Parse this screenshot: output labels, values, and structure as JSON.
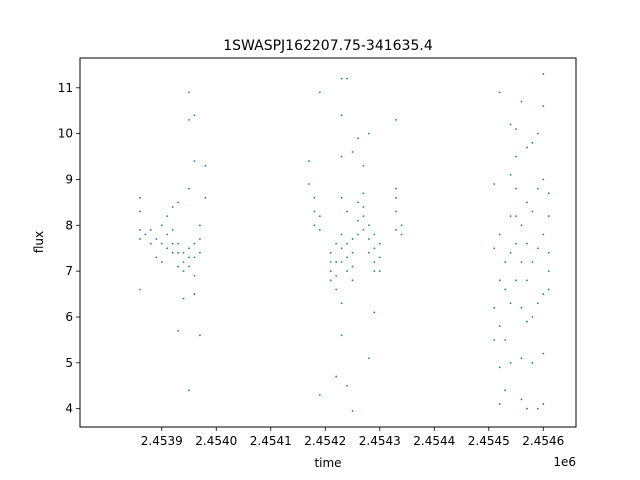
{
  "chart_data": {
    "type": "scatter",
    "title": "1SWASPJ162207.75-341635.4",
    "xlabel": "time",
    "ylabel": "flux",
    "x_offset_label": "1e6",
    "x_scale": 1000000,
    "xlim": [
      2.45375,
      2.45466
    ],
    "ylim": [
      3.6,
      11.65
    ],
    "x_ticks": [
      2.4539,
      2.454,
      2.4541,
      2.4542,
      2.4543,
      2.4544,
      2.4545,
      2.4546
    ],
    "x_tick_labels": [
      "2.4539",
      "2.4540",
      "2.4541",
      "2.4542",
      "2.4543",
      "2.4544",
      "2.4545",
      "2.4546"
    ],
    "y_ticks": [
      4,
      5,
      6,
      7,
      8,
      9,
      10,
      11
    ],
    "y_tick_labels": [
      "4",
      "5",
      "6",
      "7",
      "8",
      "9",
      "10",
      "11"
    ],
    "grid": false,
    "legend": "none",
    "marker_color": "#1f77b4",
    "series": [
      {
        "values": [
          [
            2.45386,
            7.9
          ],
          [
            2.45386,
            8.3
          ],
          [
            2.45386,
            7.7
          ],
          [
            2.45386,
            8.6
          ],
          [
            2.45386,
            6.6
          ],
          [
            2.45387,
            7.8
          ],
          [
            2.45388,
            7.9
          ],
          [
            2.45388,
            7.6
          ],
          [
            2.45389,
            7.7
          ],
          [
            2.45389,
            7.3
          ],
          [
            2.4539,
            7.6
          ],
          [
            2.4539,
            8.0
          ],
          [
            2.4539,
            7.2
          ],
          [
            2.45391,
            7.8
          ],
          [
            2.45391,
            7.5
          ],
          [
            2.45391,
            8.2
          ],
          [
            2.45392,
            7.6
          ],
          [
            2.45392,
            7.9
          ],
          [
            2.45392,
            7.4
          ],
          [
            2.45392,
            8.4
          ],
          [
            2.45393,
            7.4
          ],
          [
            2.45393,
            7.1
          ],
          [
            2.45393,
            7.6
          ],
          [
            2.45393,
            5.7
          ],
          [
            2.45393,
            8.5
          ],
          [
            2.45394,
            7.2
          ],
          [
            2.45394,
            7.4
          ],
          [
            2.45394,
            7.0
          ],
          [
            2.45394,
            6.4
          ],
          [
            2.45395,
            7.1
          ],
          [
            2.45395,
            7.3
          ],
          [
            2.45395,
            7.5
          ],
          [
            2.45395,
            8.8
          ],
          [
            2.45395,
            10.3
          ],
          [
            2.45395,
            10.9
          ],
          [
            2.45395,
            4.4
          ],
          [
            2.45396,
            7.3
          ],
          [
            2.45396,
            6.9
          ],
          [
            2.45396,
            7.6
          ],
          [
            2.45396,
            6.5
          ],
          [
            2.45396,
            9.4
          ],
          [
            2.45396,
            10.4
          ],
          [
            2.45397,
            7.4
          ],
          [
            2.45397,
            7.7
          ],
          [
            2.45397,
            8.0
          ],
          [
            2.45397,
            5.6
          ],
          [
            2.45398,
            9.3
          ],
          [
            2.45398,
            8.6
          ],
          [
            2.45417,
            8.9
          ],
          [
            2.45417,
            9.4
          ],
          [
            2.45418,
            8.3
          ],
          [
            2.45418,
            8.6
          ],
          [
            2.45418,
            8.0
          ],
          [
            2.45419,
            7.9
          ],
          [
            2.45419,
            8.2
          ],
          [
            2.45419,
            10.9
          ],
          [
            2.45419,
            4.3
          ],
          [
            2.45421,
            7.4
          ],
          [
            2.45421,
            7.0
          ],
          [
            2.45421,
            6.8
          ],
          [
            2.45421,
            7.2
          ],
          [
            2.45422,
            7.2
          ],
          [
            2.45422,
            6.9
          ],
          [
            2.45422,
            7.6
          ],
          [
            2.45422,
            6.6
          ],
          [
            2.45422,
            4.7
          ],
          [
            2.45423,
            7.5
          ],
          [
            2.45423,
            7.8
          ],
          [
            2.45423,
            7.2
          ],
          [
            2.45423,
            8.6
          ],
          [
            2.45423,
            9.5
          ],
          [
            2.45423,
            10.4
          ],
          [
            2.45423,
            11.2
          ],
          [
            2.45423,
            6.3
          ],
          [
            2.45423,
            5.6
          ],
          [
            2.45424,
            7.3
          ],
          [
            2.45424,
            7.6
          ],
          [
            2.45424,
            7.0
          ],
          [
            2.45424,
            8.3
          ],
          [
            2.45424,
            11.2
          ],
          [
            2.45424,
            4.5
          ],
          [
            2.45425,
            7.4
          ],
          [
            2.45425,
            7.1
          ],
          [
            2.45425,
            7.7
          ],
          [
            2.45425,
            6.8
          ],
          [
            2.45425,
            9.6
          ],
          [
            2.45425,
            3.95
          ],
          [
            2.45426,
            8.1
          ],
          [
            2.45426,
            8.5
          ],
          [
            2.45426,
            7.8
          ],
          [
            2.45426,
            9.9
          ],
          [
            2.45427,
            8.2
          ],
          [
            2.45427,
            8.4
          ],
          [
            2.45427,
            8.7
          ],
          [
            2.45427,
            7.9
          ],
          [
            2.45427,
            9.3
          ],
          [
            2.45428,
            7.7
          ],
          [
            2.45428,
            8.0
          ],
          [
            2.45428,
            7.4
          ],
          [
            2.45428,
            10.0
          ],
          [
            2.45428,
            5.1
          ],
          [
            2.45429,
            7.2
          ],
          [
            2.45429,
            7.5
          ],
          [
            2.45429,
            7.0
          ],
          [
            2.45429,
            7.8
          ],
          [
            2.45429,
            6.1
          ],
          [
            2.4543,
            7.3
          ],
          [
            2.4543,
            7.0
          ],
          [
            2.4543,
            7.6
          ],
          [
            2.45433,
            8.3
          ],
          [
            2.45433,
            8.6
          ],
          [
            2.45433,
            8.8
          ],
          [
            2.45433,
            10.3
          ],
          [
            2.45433,
            7.9
          ],
          [
            2.45434,
            8.0
          ],
          [
            2.45434,
            7.8
          ],
          [
            2.45451,
            8.9
          ],
          [
            2.45451,
            7.5
          ],
          [
            2.45451,
            6.2
          ],
          [
            2.45451,
            5.5
          ],
          [
            2.45452,
            7.8
          ],
          [
            2.45452,
            6.8
          ],
          [
            2.45452,
            5.8
          ],
          [
            2.45452,
            4.9
          ],
          [
            2.45452,
            4.1
          ],
          [
            2.45452,
            10.9
          ],
          [
            2.45453,
            5.5
          ],
          [
            2.45453,
            6.6
          ],
          [
            2.45453,
            4.4
          ],
          [
            2.45453,
            7.2
          ],
          [
            2.45454,
            7.4
          ],
          [
            2.45454,
            8.2
          ],
          [
            2.45454,
            9.1
          ],
          [
            2.45454,
            5.0
          ],
          [
            2.45454,
            6.3
          ],
          [
            2.45454,
            10.2
          ],
          [
            2.45455,
            8.8
          ],
          [
            2.45455,
            9.5
          ],
          [
            2.45455,
            8.2
          ],
          [
            2.45455,
            7.6
          ],
          [
            2.45455,
            10.1
          ],
          [
            2.45455,
            6.8
          ],
          [
            2.45456,
            7.2
          ],
          [
            2.45456,
            6.2
          ],
          [
            2.45456,
            5.1
          ],
          [
            2.45456,
            8.0
          ],
          [
            2.45456,
            4.2
          ],
          [
            2.45456,
            10.7
          ],
          [
            2.45457,
            6.8
          ],
          [
            2.45457,
            7.6
          ],
          [
            2.45457,
            5.9
          ],
          [
            2.45457,
            8.5
          ],
          [
            2.45457,
            4.0
          ],
          [
            2.45457,
            9.7
          ],
          [
            2.45458,
            6.0
          ],
          [
            2.45458,
            7.2
          ],
          [
            2.45458,
            8.3
          ],
          [
            2.45458,
            5.0
          ],
          [
            2.45458,
            9.8
          ],
          [
            2.45459,
            7.5
          ],
          [
            2.45459,
            8.8
          ],
          [
            2.45459,
            6.3
          ],
          [
            2.45459,
            4.0
          ],
          [
            2.45459,
            10.0
          ],
          [
            2.4546,
            6.5
          ],
          [
            2.4546,
            7.8
          ],
          [
            2.4546,
            9.0
          ],
          [
            2.4546,
            5.2
          ],
          [
            2.4546,
            10.6
          ],
          [
            2.4546,
            11.3
          ],
          [
            2.4546,
            4.1
          ],
          [
            2.45461,
            7.4
          ],
          [
            2.45461,
            8.2
          ],
          [
            2.45461,
            8.7
          ],
          [
            2.45461,
            6.6
          ],
          [
            2.45461,
            7.0
          ]
        ]
      }
    ]
  }
}
